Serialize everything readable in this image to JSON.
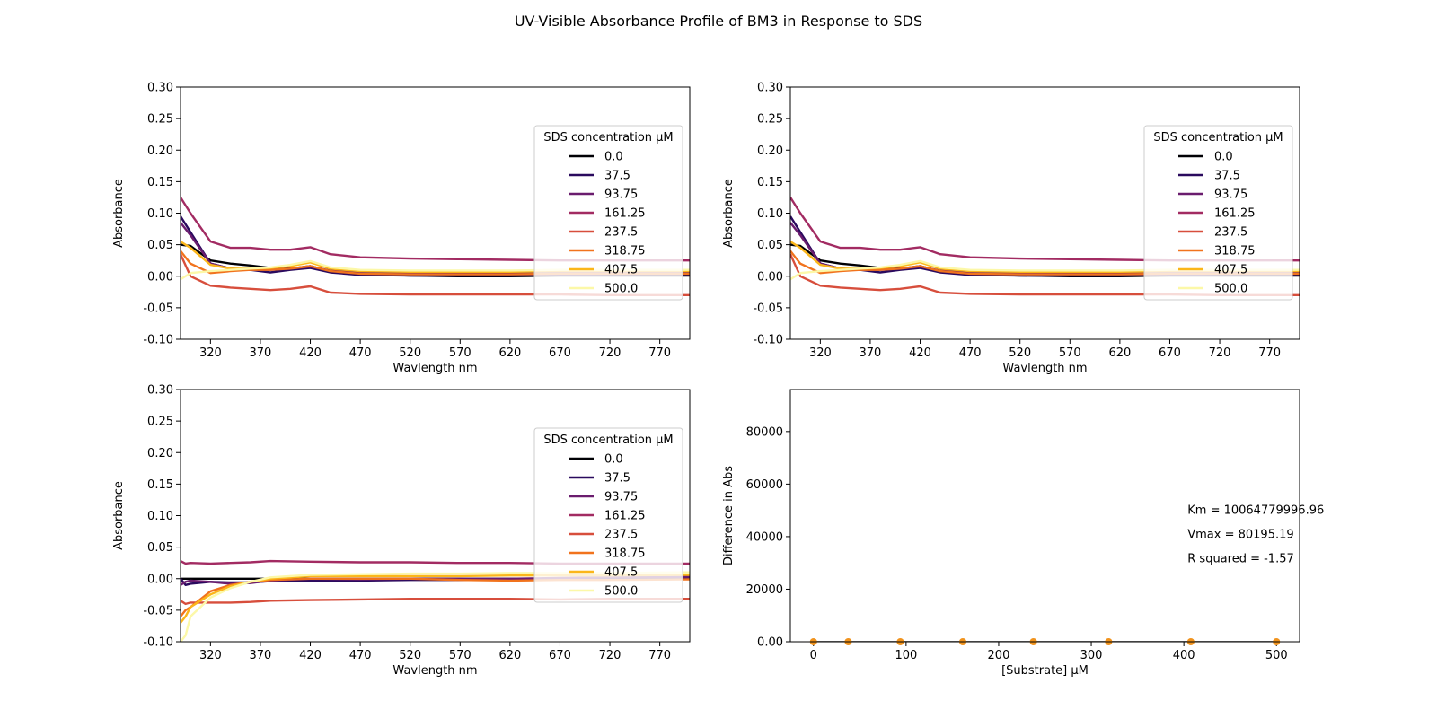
{
  "figure": {
    "title": "UV-Visible Absorbance Profile of BM3 in Response to SDS"
  },
  "chart_data": [
    {
      "type": "line",
      "panel": "top-left",
      "xlabel": "Wavlength nm",
      "ylabel": "Absorbance",
      "xlim": [
        290,
        800
      ],
      "ylim": [
        -0.1,
        0.3
      ],
      "xticks": [
        320,
        370,
        420,
        470,
        520,
        570,
        620,
        670,
        720,
        770
      ],
      "yticks": [
        -0.1,
        -0.05,
        0.0,
        0.05,
        0.1,
        0.15,
        0.2,
        0.25,
        0.3
      ],
      "legend_title": "SDS concentration µM",
      "legend_position": "right",
      "series": [
        {
          "name": "0.0",
          "color": "#000004",
          "x": [
            290,
            300,
            320,
            340,
            360,
            380,
            400,
            420,
            440,
            470,
            520,
            570,
            620,
            670,
            720,
            800
          ],
          "y": [
            0.05,
            0.048,
            0.025,
            0.02,
            0.017,
            0.013,
            0.012,
            0.016,
            0.008,
            0.004,
            0.001,
            0.0,
            0.0,
            0.001,
            0.001,
            0.001
          ]
        },
        {
          "name": "37.5",
          "color": "#2a0a5e",
          "x": [
            290,
            300,
            320,
            340,
            360,
            380,
            400,
            420,
            440,
            470,
            520,
            570,
            620,
            670,
            720,
            800
          ],
          "y": [
            0.095,
            0.07,
            0.02,
            0.012,
            0.01,
            0.006,
            0.01,
            0.013,
            0.006,
            0.002,
            0.001,
            0.001,
            0.001,
            0.002,
            0.003,
            0.003
          ]
        },
        {
          "name": "93.75",
          "color": "#6a1c6e",
          "x": [
            290,
            300,
            320,
            340,
            360,
            380,
            400,
            420,
            440,
            470,
            520,
            570,
            620,
            670,
            720,
            800
          ],
          "y": [
            0.085,
            0.065,
            0.02,
            0.012,
            0.01,
            0.01,
            0.012,
            0.015,
            0.009,
            0.006,
            0.005,
            0.005,
            0.005,
            0.006,
            0.007,
            0.007
          ]
        },
        {
          "name": "161.25",
          "color": "#a22b62",
          "x": [
            290,
            300,
            320,
            340,
            360,
            380,
            400,
            420,
            440,
            470,
            520,
            570,
            620,
            670,
            720,
            800
          ],
          "y": [
            0.125,
            0.1,
            0.055,
            0.045,
            0.045,
            0.042,
            0.042,
            0.046,
            0.035,
            0.03,
            0.028,
            0.027,
            0.026,
            0.025,
            0.025,
            0.025
          ]
        },
        {
          "name": "237.5",
          "color": "#d74e3c",
          "x": [
            290,
            300,
            320,
            340,
            360,
            380,
            400,
            420,
            440,
            470,
            520,
            570,
            620,
            670,
            720,
            800
          ],
          "y": [
            0.035,
            0.0,
            -0.015,
            -0.018,
            -0.02,
            -0.022,
            -0.02,
            -0.016,
            -0.026,
            -0.028,
            -0.029,
            -0.029,
            -0.029,
            -0.029,
            -0.03,
            -0.03
          ]
        },
        {
          "name": "318.75",
          "color": "#f1731d",
          "x": [
            290,
            300,
            320,
            340,
            360,
            380,
            400,
            420,
            440,
            470,
            520,
            570,
            620,
            670,
            720,
            800
          ],
          "y": [
            0.04,
            0.02,
            0.005,
            0.008,
            0.01,
            0.01,
            0.012,
            0.016,
            0.008,
            0.004,
            0.003,
            0.003,
            0.003,
            0.004,
            0.004,
            0.004
          ]
        },
        {
          "name": "407.5",
          "color": "#fbb61a",
          "x": [
            290,
            300,
            320,
            340,
            360,
            380,
            400,
            420,
            440,
            470,
            520,
            570,
            620,
            670,
            720,
            800
          ],
          "y": [
            0.055,
            0.045,
            0.018,
            0.012,
            0.012,
            0.013,
            0.016,
            0.022,
            0.012,
            0.008,
            0.007,
            0.007,
            0.007,
            0.008,
            0.008,
            0.008
          ]
        },
        {
          "name": "500.0",
          "color": "#fcf8a8",
          "x": [
            290,
            300,
            320,
            340,
            360,
            380,
            400,
            420,
            440,
            470,
            520,
            570,
            620,
            670,
            720,
            800
          ],
          "y": [
            -0.005,
            0.005,
            0.008,
            0.01,
            0.012,
            0.014,
            0.018,
            0.024,
            0.014,
            0.01,
            0.009,
            0.009,
            0.009,
            0.01,
            0.01,
            0.01
          ]
        }
      ]
    },
    {
      "type": "line",
      "panel": "top-right",
      "xlabel": "Wavlength nm",
      "ylabel": "Absorbance",
      "xlim": [
        290,
        800
      ],
      "ylim": [
        -0.1,
        0.3
      ],
      "xticks": [
        320,
        370,
        420,
        470,
        520,
        570,
        620,
        670,
        720,
        770
      ],
      "yticks": [
        -0.1,
        -0.05,
        0.0,
        0.05,
        0.1,
        0.15,
        0.2,
        0.25,
        0.3
      ],
      "legend_title": "SDS concentration µM",
      "legend_position": "right",
      "series": [
        {
          "name": "0.0",
          "color": "#000004",
          "x": [
            290,
            300,
            320,
            340,
            360,
            380,
            400,
            420,
            440,
            470,
            520,
            570,
            620,
            670,
            720,
            800
          ],
          "y": [
            0.05,
            0.048,
            0.025,
            0.02,
            0.017,
            0.013,
            0.012,
            0.016,
            0.008,
            0.004,
            0.001,
            0.0,
            0.0,
            0.001,
            0.001,
            0.001
          ]
        },
        {
          "name": "37.5",
          "color": "#2a0a5e",
          "x": [
            290,
            300,
            320,
            340,
            360,
            380,
            400,
            420,
            440,
            470,
            520,
            570,
            620,
            670,
            720,
            800
          ],
          "y": [
            0.095,
            0.07,
            0.02,
            0.012,
            0.01,
            0.006,
            0.01,
            0.013,
            0.006,
            0.002,
            0.001,
            0.001,
            0.001,
            0.002,
            0.003,
            0.003
          ]
        },
        {
          "name": "93.75",
          "color": "#6a1c6e",
          "x": [
            290,
            300,
            320,
            340,
            360,
            380,
            400,
            420,
            440,
            470,
            520,
            570,
            620,
            670,
            720,
            800
          ],
          "y": [
            0.085,
            0.065,
            0.02,
            0.012,
            0.01,
            0.01,
            0.012,
            0.015,
            0.009,
            0.006,
            0.005,
            0.005,
            0.005,
            0.006,
            0.007,
            0.007
          ]
        },
        {
          "name": "161.25",
          "color": "#a22b62",
          "x": [
            290,
            300,
            320,
            340,
            360,
            380,
            400,
            420,
            440,
            470,
            520,
            570,
            620,
            670,
            720,
            800
          ],
          "y": [
            0.125,
            0.1,
            0.055,
            0.045,
            0.045,
            0.042,
            0.042,
            0.046,
            0.035,
            0.03,
            0.028,
            0.027,
            0.026,
            0.025,
            0.025,
            0.025
          ]
        },
        {
          "name": "237.5",
          "color": "#d74e3c",
          "x": [
            290,
            300,
            320,
            340,
            360,
            380,
            400,
            420,
            440,
            470,
            520,
            570,
            620,
            670,
            720,
            800
          ],
          "y": [
            0.035,
            0.0,
            -0.015,
            -0.018,
            -0.02,
            -0.022,
            -0.02,
            -0.016,
            -0.026,
            -0.028,
            -0.029,
            -0.029,
            -0.029,
            -0.029,
            -0.03,
            -0.03
          ]
        },
        {
          "name": "318.75",
          "color": "#f1731d",
          "x": [
            290,
            300,
            320,
            340,
            360,
            380,
            400,
            420,
            440,
            470,
            520,
            570,
            620,
            670,
            720,
            800
          ],
          "y": [
            0.04,
            0.02,
            0.005,
            0.008,
            0.01,
            0.01,
            0.012,
            0.016,
            0.008,
            0.004,
            0.003,
            0.003,
            0.003,
            0.004,
            0.004,
            0.004
          ]
        },
        {
          "name": "407.5",
          "color": "#fbb61a",
          "x": [
            290,
            300,
            320,
            340,
            360,
            380,
            400,
            420,
            440,
            470,
            520,
            570,
            620,
            670,
            720,
            800
          ],
          "y": [
            0.055,
            0.045,
            0.018,
            0.012,
            0.012,
            0.013,
            0.016,
            0.022,
            0.012,
            0.008,
            0.007,
            0.007,
            0.007,
            0.008,
            0.008,
            0.008
          ]
        },
        {
          "name": "500.0",
          "color": "#fcf8a8",
          "x": [
            290,
            300,
            320,
            340,
            360,
            380,
            400,
            420,
            440,
            470,
            520,
            570,
            620,
            670,
            720,
            800
          ],
          "y": [
            -0.005,
            0.005,
            0.008,
            0.01,
            0.012,
            0.014,
            0.018,
            0.024,
            0.014,
            0.01,
            0.009,
            0.009,
            0.009,
            0.01,
            0.01,
            0.01
          ]
        }
      ]
    },
    {
      "type": "line",
      "panel": "bottom-left",
      "xlabel": "Wavlength nm",
      "ylabel": "Absorbance",
      "xlim": [
        290,
        800
      ],
      "ylim": [
        -0.1,
        0.3
      ],
      "xticks": [
        320,
        370,
        420,
        470,
        520,
        570,
        620,
        670,
        720,
        770
      ],
      "yticks": [
        -0.1,
        -0.05,
        0.0,
        0.05,
        0.1,
        0.15,
        0.2,
        0.25,
        0.3
      ],
      "legend_title": "SDS concentration µM",
      "legend_position": "right",
      "series": [
        {
          "name": "0.0",
          "color": "#000004",
          "x": [
            290,
            295,
            300,
            320,
            340,
            360,
            380,
            420,
            470,
            520,
            570,
            620,
            670,
            720,
            800
          ],
          "y": [
            0.0,
            0.0,
            0.0,
            0.0,
            0.0,
            0.0,
            0.0,
            0.0,
            0.0,
            0.0,
            0.0,
            0.0,
            0.0,
            0.0,
            0.0
          ]
        },
        {
          "name": "37.5",
          "color": "#2a0a5e",
          "x": [
            290,
            295,
            300,
            320,
            340,
            360,
            380,
            420,
            470,
            520,
            570,
            620,
            670,
            720,
            800
          ],
          "y": [
            0.0,
            -0.01,
            -0.008,
            -0.005,
            -0.006,
            -0.006,
            -0.004,
            -0.003,
            -0.003,
            -0.002,
            -0.002,
            -0.001,
            0.0,
            0.0,
            0.0
          ]
        },
        {
          "name": "93.75",
          "color": "#6a1c6e",
          "x": [
            290,
            295,
            300,
            320,
            340,
            360,
            380,
            420,
            470,
            520,
            570,
            620,
            670,
            720,
            800
          ],
          "y": [
            -0.01,
            -0.005,
            -0.003,
            -0.005,
            -0.008,
            -0.007,
            -0.003,
            0.0,
            -0.001,
            0.0,
            0.0,
            0.0,
            0.001,
            0.002,
            0.003
          ]
        },
        {
          "name": "161.25",
          "color": "#a22b62",
          "x": [
            290,
            295,
            300,
            320,
            340,
            360,
            380,
            420,
            470,
            520,
            570,
            620,
            670,
            720,
            800
          ],
          "y": [
            0.028,
            0.024,
            0.025,
            0.024,
            0.025,
            0.026,
            0.028,
            0.027,
            0.026,
            0.026,
            0.025,
            0.025,
            0.024,
            0.024,
            0.024
          ]
        },
        {
          "name": "237.5",
          "color": "#d74e3c",
          "x": [
            290,
            295,
            300,
            320,
            340,
            360,
            380,
            420,
            470,
            520,
            570,
            620,
            670,
            720,
            800
          ],
          "y": [
            -0.035,
            -0.04,
            -0.038,
            -0.038,
            -0.038,
            -0.037,
            -0.035,
            -0.034,
            -0.033,
            -0.032,
            -0.032,
            -0.032,
            -0.033,
            -0.032,
            -0.032
          ]
        },
        {
          "name": "318.75",
          "color": "#f1731d",
          "x": [
            290,
            295,
            300,
            320,
            340,
            360,
            380,
            420,
            470,
            520,
            570,
            620,
            670,
            720,
            800
          ],
          "y": [
            -0.06,
            -0.05,
            -0.045,
            -0.02,
            -0.01,
            -0.005,
            -0.002,
            0.0,
            0.0,
            0.0,
            -0.002,
            -0.003,
            -0.002,
            -0.002,
            -0.001
          ]
        },
        {
          "name": "407.5",
          "color": "#fbb61a",
          "x": [
            290,
            295,
            300,
            320,
            340,
            360,
            380,
            420,
            470,
            520,
            570,
            620,
            670,
            720,
            800
          ],
          "y": [
            -0.07,
            -0.06,
            -0.045,
            -0.025,
            -0.012,
            -0.005,
            0.0,
            0.004,
            0.004,
            0.004,
            0.004,
            0.005,
            0.005,
            0.005,
            0.006
          ]
        },
        {
          "name": "500.0",
          "color": "#fcf8a8",
          "x": [
            290,
            295,
            300,
            320,
            340,
            360,
            380,
            420,
            470,
            520,
            570,
            620,
            670,
            720,
            800
          ],
          "y": [
            -0.1,
            -0.09,
            -0.06,
            -0.03,
            -0.015,
            -0.005,
            0.002,
            0.006,
            0.007,
            0.008,
            0.008,
            0.009,
            0.009,
            0.009,
            0.01
          ]
        }
      ]
    },
    {
      "type": "scatter",
      "panel": "bottom-right",
      "xlabel": "[Substrate] µM",
      "ylabel": "Difference in Abs",
      "xlim": [
        -25,
        525
      ],
      "ylim": [
        0,
        96000
      ],
      "xticks": [
        0,
        100,
        200,
        300,
        400,
        500
      ],
      "yticks": [
        0,
        20000,
        40000,
        60000,
        80000
      ],
      "points": {
        "color": "#f1931d",
        "x": [
          0,
          37.5,
          93.75,
          161.25,
          237.5,
          318.75,
          407.5,
          500.0
        ],
        "y": [
          0,
          0,
          0,
          0,
          0,
          0,
          0,
          0
        ]
      },
      "fit_line": {
        "color": "#000000",
        "x": [
          0,
          500
        ],
        "y": [
          0,
          0
        ]
      },
      "annotations": [
        "Km = 10064779996.96",
        "Vmax = 80195.19",
        "R squared = -1.57"
      ]
    }
  ]
}
